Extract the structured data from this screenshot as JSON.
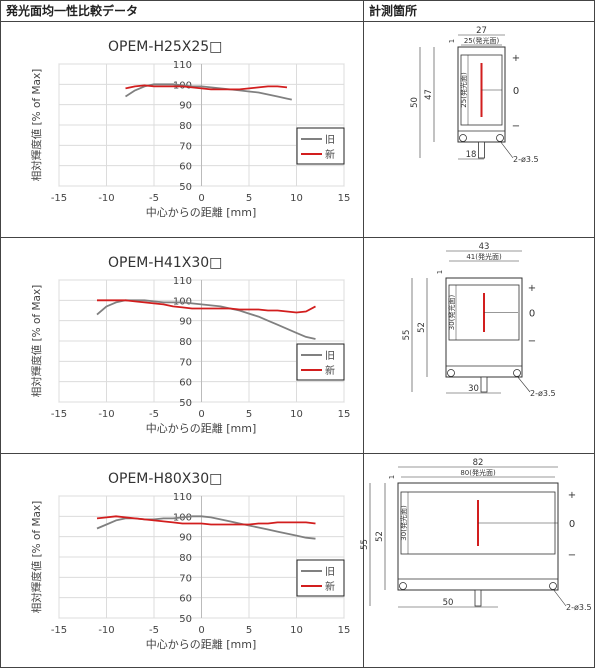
{
  "header": {
    "left_title": "発光面均一性比較データ",
    "right_title": "計測箇所"
  },
  "charts": [
    {
      "title": "OPEM-H25X25□",
      "xlabel": "中心からの距離 [mm]",
      "ylabel": "相対輝度値 [% of Max]",
      "xticks": [
        "-15",
        "-10",
        "-5",
        "0",
        "5",
        "10",
        "15"
      ],
      "yticks": [
        "50",
        "60",
        "70",
        "80",
        "90",
        "100",
        "110"
      ],
      "legend": [
        "旧",
        "新"
      ]
    },
    {
      "title": "OPEM-H41X30□",
      "xlabel": "中心からの距離 [mm]",
      "ylabel": "相対輝度値 [% of Max]",
      "xticks": [
        "-15",
        "-10",
        "-5",
        "0",
        "5",
        "10",
        "15"
      ],
      "yticks": [
        "50",
        "60",
        "70",
        "80",
        "90",
        "100",
        "110"
      ],
      "legend": [
        "旧",
        "新"
      ]
    },
    {
      "title": "OPEM-H80X30□",
      "xlabel": "中心からの距離 [mm]",
      "ylabel": "相対輝度値 [% of Max]",
      "xticks": [
        "-15",
        "-10",
        "-5",
        "0",
        "5",
        "10",
        "15"
      ],
      "yticks": [
        "50",
        "60",
        "70",
        "80",
        "90",
        "100",
        "110"
      ],
      "legend": [
        "旧",
        "新"
      ]
    }
  ],
  "chart_data": [
    {
      "type": "line",
      "title": "OPEM-H25X25□",
      "xlabel": "中心からの距離 [mm]",
      "ylabel": "相対輝度値 [% of Max]",
      "xlim": [
        -15,
        15
      ],
      "ylim": [
        50,
        110
      ],
      "grid": true,
      "legend_position": "bottom-right",
      "series": [
        {
          "name": "旧",
          "x": [
            -8,
            -7,
            -6,
            -5,
            -4,
            -3,
            -2,
            -1,
            0,
            1,
            2,
            3,
            4,
            5,
            6,
            7,
            8,
            9,
            9.5
          ],
          "y": [
            94,
            97,
            99,
            100,
            100,
            100,
            99.5,
            99,
            99,
            98.5,
            98,
            97.5,
            97,
            96.5,
            96,
            95,
            94,
            93,
            92.5
          ]
        },
        {
          "name": "新",
          "x": [
            -8,
            -7,
            -6,
            -5,
            -4,
            -3,
            -2,
            -1,
            0,
            1,
            2,
            3,
            4,
            5,
            6,
            7,
            8,
            9
          ],
          "y": [
            98,
            99,
            99.5,
            99,
            99,
            99,
            99,
            98.5,
            98,
            97.5,
            97.5,
            97.5,
            97.5,
            98,
            98.5,
            99,
            99,
            98.5
          ]
        }
      ]
    },
    {
      "type": "line",
      "title": "OPEM-H41X30□",
      "xlabel": "中心からの距離 [mm]",
      "ylabel": "相対輝度値 [% of Max]",
      "xlim": [
        -15,
        15
      ],
      "ylim": [
        50,
        110
      ],
      "grid": true,
      "legend_position": "bottom-right",
      "series": [
        {
          "name": "旧",
          "x": [
            -11,
            -10,
            -9,
            -8,
            -7,
            -6,
            -5,
            -4,
            -3,
            -2,
            -1,
            0,
            1,
            2,
            3,
            4,
            5,
            6,
            7,
            8,
            9,
            10,
            11,
            12
          ],
          "y": [
            93,
            97,
            99,
            100,
            100,
            100,
            99.5,
            99,
            99,
            99,
            98.5,
            98,
            97.5,
            97,
            96,
            95,
            93.5,
            92,
            90,
            88,
            86,
            84,
            82,
            81
          ]
        },
        {
          "name": "新",
          "x": [
            -11,
            -10,
            -9,
            -8,
            -7,
            -6,
            -5,
            -4,
            -3,
            -2,
            -1,
            0,
            1,
            2,
            3,
            4,
            5,
            6,
            7,
            8,
            9,
            10,
            11,
            12
          ],
          "y": [
            100,
            100,
            100,
            100,
            99.5,
            99,
            98.5,
            98,
            97,
            96.5,
            96,
            96,
            96,
            96,
            96,
            95.5,
            95.5,
            95.5,
            95,
            95,
            94.5,
            94,
            94.5,
            97
          ]
        }
      ]
    },
    {
      "type": "line",
      "title": "OPEM-H80X30□",
      "xlabel": "中心からの距離 [mm]",
      "ylabel": "相対輝度値 [% of Max]",
      "xlim": [
        -15,
        15
      ],
      "ylim": [
        50,
        110
      ],
      "grid": true,
      "legend_position": "bottom-right",
      "series": [
        {
          "name": "旧",
          "x": [
            -11,
            -10,
            -9,
            -8,
            -7,
            -6,
            -5,
            -4,
            -3,
            -2,
            -1,
            0,
            1,
            2,
            3,
            4,
            5,
            6,
            7,
            8,
            9,
            10,
            11,
            12
          ],
          "y": [
            94,
            96,
            98,
            99,
            99,
            98.5,
            98.5,
            99,
            99,
            99.5,
            100,
            100,
            99.5,
            98.5,
            97.5,
            96.5,
            95.5,
            94.5,
            93.5,
            92.5,
            91.5,
            90.5,
            89.5,
            89
          ]
        },
        {
          "name": "新",
          "x": [
            -11,
            -10,
            -9,
            -8,
            -7,
            -6,
            -5,
            -4,
            -3,
            -2,
            -1,
            0,
            1,
            2,
            3,
            4,
            5,
            6,
            7,
            8,
            9,
            10,
            11,
            12
          ],
          "y": [
            99,
            99.5,
            100,
            99.5,
            99,
            98.5,
            98,
            97.5,
            97,
            96.5,
            96.5,
            96.5,
            96,
            96,
            96,
            96,
            96,
            96.5,
            96.5,
            97,
            97,
            97,
            97,
            96.5
          ]
        }
      ]
    }
  ],
  "drawings": [
    {
      "dim_outer_w": "27",
      "dim_inner_w": "25(発光面)",
      "dim_left_h": "50",
      "dim_mid_h": "47",
      "dim_face_h": "25(発光面)",
      "dim_bottom": "18",
      "dim_hole": "2-ø3.5",
      "dim_top_gap": "1",
      "pos_plus": "+",
      "pos_zero": "0",
      "pos_minus": "−"
    },
    {
      "dim_outer_w": "43",
      "dim_inner_w": "41(発光面)",
      "dim_left_h": "55",
      "dim_mid_h": "52",
      "dim_face_h": "30(発光面)",
      "dim_bottom": "30",
      "dim_hole": "2-ø3.5",
      "dim_top_gap": "1",
      "pos_plus": "+",
      "pos_zero": "0",
      "pos_minus": "−"
    },
    {
      "dim_outer_w": "82",
      "dim_inner_w": "80(発光面)",
      "dim_left_h": "55",
      "dim_mid_h": "52",
      "dim_face_h": "30(発光面)",
      "dim_bottom": "50",
      "dim_hole": "2-ø3.5",
      "dim_top_gap": "1",
      "pos_plus": "+",
      "pos_zero": "0",
      "pos_minus": "−"
    }
  ]
}
